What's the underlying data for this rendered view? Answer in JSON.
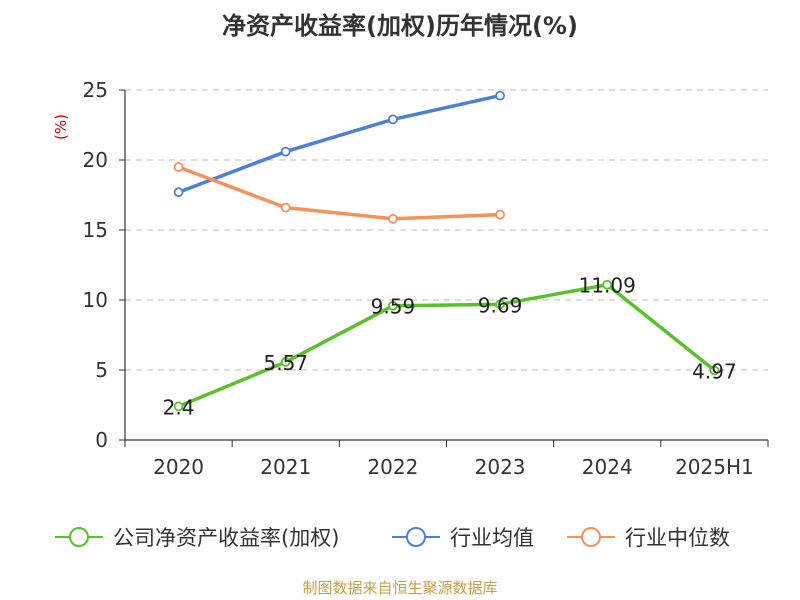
{
  "chart_data": {
    "type": "line",
    "title": "净资产收益率(加权)历年情况(%)",
    "ylabel": "(%)",
    "xlabel": "",
    "categories": [
      "2020",
      "2021",
      "2022",
      "2023",
      "2024",
      "2025H1"
    ],
    "ylim": [
      0,
      25
    ],
    "yticks": [
      0,
      5,
      10,
      15,
      20,
      25
    ],
    "grid": true,
    "legend_position": "bottom",
    "series": [
      {
        "name": "公司净资产收益率(加权)",
        "color": "#5ac12c",
        "values": [
          2.4,
          5.57,
          9.59,
          9.69,
          11.09,
          4.97
        ],
        "labels": [
          "2.4",
          "5.57",
          "9.59",
          "9.69",
          "11.09",
          "4.97"
        ]
      },
      {
        "name": "行业均值",
        "color": "#4d7fd9",
        "values": [
          17.7,
          20.6,
          22.9,
          24.6,
          null,
          null
        ]
      },
      {
        "name": "行业中位数",
        "color": "#f5915b",
        "values": [
          19.5,
          16.6,
          15.8,
          16.1,
          null,
          null
        ]
      }
    ]
  },
  "footer": {
    "source": "制图数据来自恒生聚源数据库"
  },
  "colors": {
    "title": "#333333",
    "axis": "#333333",
    "grid": "#bbbbbb",
    "ylabel": "#cc0000",
    "source": "#c8a04a"
  }
}
